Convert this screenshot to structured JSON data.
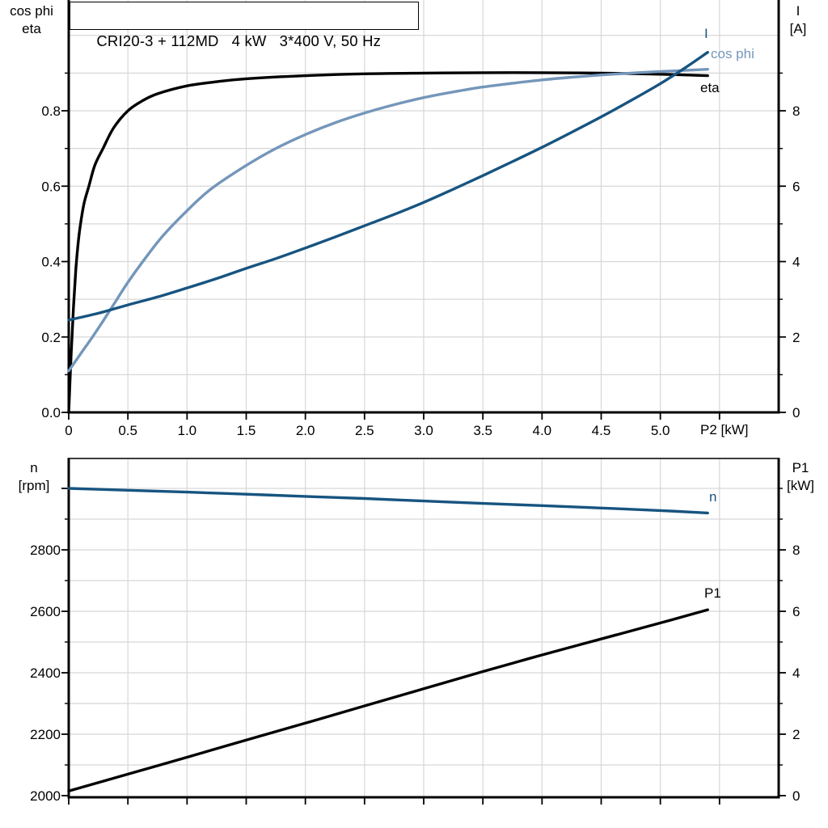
{
  "title": "CRI20-3 + 112MD   4 kW   3*400 V, 50 Hz",
  "colors": {
    "curve_black": "#000000",
    "curve_dark_blue": "#175480",
    "curve_light_blue": "#7496ba",
    "grid": "#d7d7d7",
    "frame": "#000000",
    "bottom_top_frame": "#3d3d3d"
  },
  "labels": {
    "top_left_line1": "cos phi",
    "top_left_line2": "eta",
    "top_right_line1": "I",
    "top_right_line2": "[A]",
    "bottom_left_line1": "n",
    "bottom_left_line2": "[rpm]",
    "bottom_right_line1": "P1",
    "bottom_right_line2": "[kW]",
    "x_axis": "P2 [kW]"
  },
  "chart_data": [
    {
      "type": "line",
      "title": "Motor curves: eta, cos phi and current I versus shaft power P2",
      "x_axis": {
        "label": "P2 [kW]",
        "min": 0,
        "max": 6,
        "ticks": [
          0,
          0.5,
          1,
          1.5,
          2,
          2.5,
          3,
          3.5,
          4,
          4.5,
          5,
          5.5
        ],
        "tick_labels": [
          "0",
          "0.5",
          "1.0",
          "1.5",
          "2.0",
          "2.5",
          "3.0",
          "3.5",
          "4.0",
          "4.5",
          "5.0",
          ""
        ],
        "gridlines": [
          0.5,
          1,
          1.5,
          2,
          2.5,
          3,
          3.5,
          4,
          4.5,
          5,
          5.5
        ],
        "grid_on": true
      },
      "y_left": {
        "label": "cos phi / eta",
        "min": 0,
        "max": 1.09,
        "major_ticks": [
          0,
          0.2,
          0.4,
          0.6,
          0.8
        ],
        "tick_labels": [
          "0.0",
          "0.2",
          "0.4",
          "0.6",
          "0.8"
        ],
        "minor_ticks": [
          0.1,
          0.3,
          0.5,
          0.7,
          0.9
        ],
        "gridlines": [
          0.1,
          0.2,
          0.3,
          0.4,
          0.5,
          0.6,
          0.7,
          0.8,
          0.9,
          1.0
        ]
      },
      "y_right": {
        "label": "I [A]",
        "min": 0,
        "max": 10.9,
        "major_ticks": [
          0,
          2,
          4,
          6,
          8
        ],
        "tick_labels": [
          "0",
          "2",
          "4",
          "6",
          "8"
        ],
        "minor_ticks": [
          1,
          3,
          5,
          7,
          9
        ]
      },
      "series": [
        {
          "name": "eta",
          "label": "eta",
          "axis": "left",
          "color_key": "curve_black",
          "points": [
            [
              0,
              0
            ],
            [
              0.02,
              0.15
            ],
            [
              0.04,
              0.28
            ],
            [
              0.06,
              0.38
            ],
            [
              0.08,
              0.45
            ],
            [
              0.1,
              0.5
            ],
            [
              0.13,
              0.555
            ],
            [
              0.17,
              0.6
            ],
            [
              0.22,
              0.655
            ],
            [
              0.29,
              0.7
            ],
            [
              0.38,
              0.755
            ],
            [
              0.5,
              0.8
            ],
            [
              0.62,
              0.826
            ],
            [
              0.75,
              0.845
            ],
            [
              1,
              0.866
            ],
            [
              1.25,
              0.877
            ],
            [
              1.5,
              0.885
            ],
            [
              2,
              0.893
            ],
            [
              2.5,
              0.898
            ],
            [
              3,
              0.9
            ],
            [
              3.5,
              0.901
            ],
            [
              4,
              0.901
            ],
            [
              4.5,
              0.9
            ],
            [
              5,
              0.897
            ],
            [
              5.4,
              0.893
            ]
          ]
        },
        {
          "name": "cos_phi",
          "label": "cos phi",
          "axis": "left",
          "color_key": "curve_light_blue",
          "points": [
            [
              0,
              0.11
            ],
            [
              0.1,
              0.155
            ],
            [
              0.2,
              0.2
            ],
            [
              0.3,
              0.247
            ],
            [
              0.4,
              0.296
            ],
            [
              0.5,
              0.345
            ],
            [
              0.65,
              0.41
            ],
            [
              0.8,
              0.47
            ],
            [
              1,
              0.535
            ],
            [
              1.2,
              0.592
            ],
            [
              1.5,
              0.655
            ],
            [
              1.75,
              0.7
            ],
            [
              2,
              0.737
            ],
            [
              2.25,
              0.768
            ],
            [
              2.5,
              0.794
            ],
            [
              2.75,
              0.816
            ],
            [
              3,
              0.835
            ],
            [
              3.25,
              0.85
            ],
            [
              3.5,
              0.863
            ],
            [
              3.75,
              0.873
            ],
            [
              4,
              0.882
            ],
            [
              4.25,
              0.889
            ],
            [
              4.5,
              0.895
            ],
            [
              4.75,
              0.9
            ],
            [
              5,
              0.904
            ],
            [
              5.2,
              0.907
            ],
            [
              5.4,
              0.91
            ]
          ]
        },
        {
          "name": "I",
          "label": "I",
          "axis": "right",
          "color_key": "curve_dark_blue",
          "points": [
            [
              0,
              2.45
            ],
            [
              0.25,
              2.63
            ],
            [
              0.5,
              2.85
            ],
            [
              0.75,
              3.06
            ],
            [
              1,
              3.3
            ],
            [
              1.25,
              3.55
            ],
            [
              1.5,
              3.82
            ],
            [
              1.75,
              4.08
            ],
            [
              2,
              4.36
            ],
            [
              2.25,
              4.65
            ],
            [
              2.5,
              4.95
            ],
            [
              2.75,
              5.25
            ],
            [
              3,
              5.57
            ],
            [
              3.25,
              5.92
            ],
            [
              3.5,
              6.28
            ],
            [
              3.75,
              6.65
            ],
            [
              4,
              7.03
            ],
            [
              4.25,
              7.43
            ],
            [
              4.5,
              7.84
            ],
            [
              4.75,
              8.27
            ],
            [
              5,
              8.72
            ],
            [
              5.2,
              9.12
            ],
            [
              5.4,
              9.55
            ]
          ]
        }
      ]
    },
    {
      "type": "line",
      "title": "Motor curves: speed n and input power P1 versus shaft power P2",
      "x_axis": {
        "label": "",
        "min": 0,
        "max": 6,
        "ticks": [
          0,
          0.5,
          1,
          1.5,
          2,
          2.5,
          3,
          3.5,
          4,
          4.5,
          5,
          5.5
        ],
        "tick_labels": [
          "",
          "",
          "",
          "",
          "",
          "",
          "",
          "",
          "",
          "",
          "",
          ""
        ],
        "gridlines": [
          0.5,
          1,
          1.5,
          2,
          2.5,
          3,
          3.5,
          4,
          4.5,
          5,
          5.5
        ],
        "grid_on": true
      },
      "y_left": {
        "label": "n [rpm]",
        "min": 2000,
        "max": 3100,
        "major_ticks": [
          2000,
          2200,
          2400,
          2600,
          2800,
          3000
        ],
        "tick_labels": [
          "2000",
          "2200",
          "2400",
          "2600",
          "2800",
          ""
        ],
        "minor_ticks": [
          2100,
          2300,
          2500,
          2700,
          2900
        ],
        "gridlines": [
          2100,
          2200,
          2300,
          2400,
          2500,
          2600,
          2700,
          2800,
          2900,
          3000
        ]
      },
      "y_right": {
        "label": "P1 [kW]",
        "min": 0,
        "max": 11,
        "major_ticks": [
          0,
          2,
          4,
          6,
          8
        ],
        "tick_labels": [
          "0",
          "2",
          "4",
          "6",
          "8"
        ],
        "minor_ticks": [
          1,
          3,
          5,
          7,
          9,
          10
        ]
      },
      "series": [
        {
          "name": "n",
          "label": "n",
          "axis": "left",
          "color_key": "curve_dark_blue",
          "points": [
            [
              0,
              3000
            ],
            [
              0.5,
              2994
            ],
            [
              1,
              2988
            ],
            [
              1.5,
              2981
            ],
            [
              2,
              2974
            ],
            [
              2.5,
              2967
            ],
            [
              3,
              2959
            ],
            [
              3.5,
              2951
            ],
            [
              4,
              2944
            ],
            [
              4.5,
              2936
            ],
            [
              5,
              2928
            ],
            [
              5.4,
              2920
            ]
          ]
        },
        {
          "name": "P1",
          "label": "P1",
          "axis": "right",
          "color_key": "curve_black",
          "points": [
            [
              0,
              0.15
            ],
            [
              0.5,
              0.7
            ],
            [
              1,
              1.25
            ],
            [
              1.5,
              1.81
            ],
            [
              2,
              2.36
            ],
            [
              2.5,
              2.92
            ],
            [
              3,
              3.48
            ],
            [
              3.5,
              4.04
            ],
            [
              4,
              4.58
            ],
            [
              4.5,
              5.1
            ],
            [
              5,
              5.62
            ],
            [
              5.4,
              6.05
            ]
          ]
        }
      ]
    }
  ]
}
